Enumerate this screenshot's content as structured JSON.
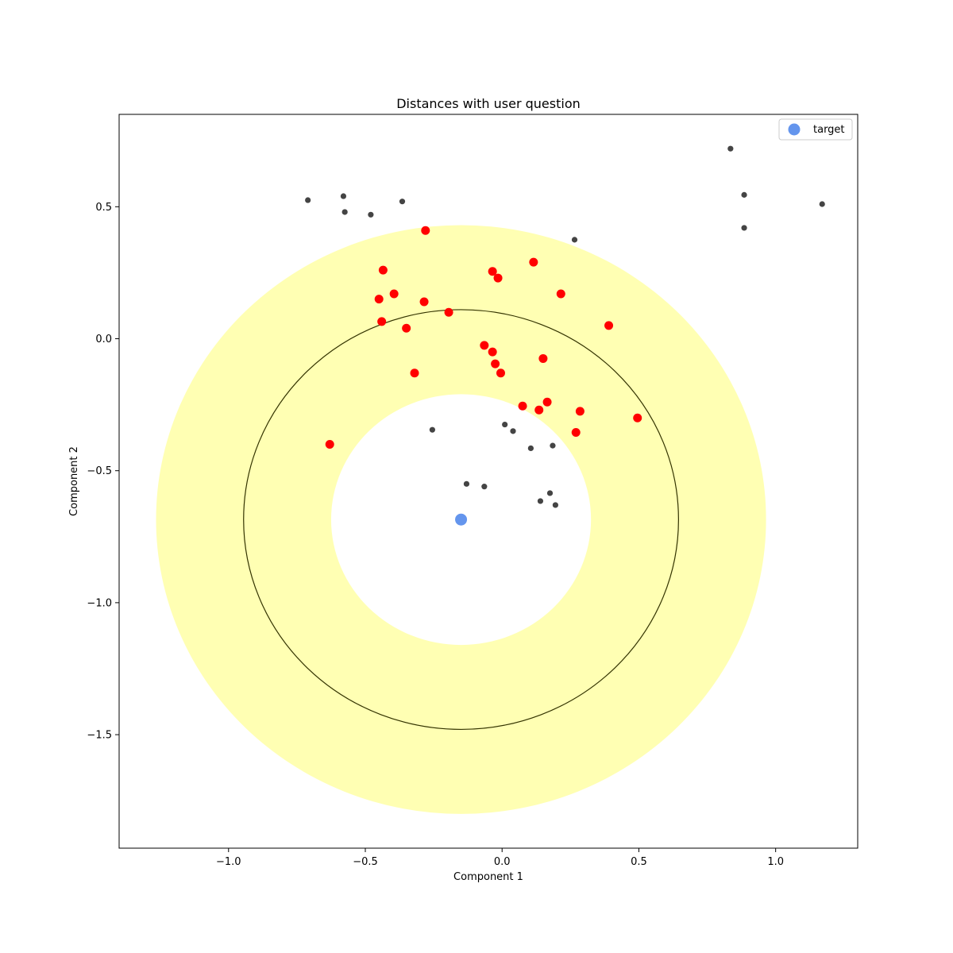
{
  "chart_data": {
    "type": "scatter",
    "title": "Distances with user question",
    "xlabel": "Component 1",
    "ylabel": "Component 2",
    "xlim": [
      -1.4,
      1.3
    ],
    "ylim": [
      -1.93,
      0.85
    ],
    "xticks": [
      -1.0,
      -0.5,
      0.0,
      0.5,
      1.0
    ],
    "yticks": [
      0.5,
      0.0,
      -0.5,
      -1.0,
      -1.5
    ],
    "xtick_labels": [
      "−1.0",
      "−0.5",
      "0.0",
      "0.5",
      "1.0"
    ],
    "ytick_labels": [
      "0.5",
      "0.0",
      "−0.5",
      "−1.0",
      "−1.5"
    ],
    "grid": false,
    "legend": {
      "placement": "top-right",
      "entries": [
        "target"
      ]
    },
    "colors": {
      "target": "#6495ed",
      "in_band": "#ff0000",
      "other": "#444444",
      "band_fill": "#ffffb3",
      "band_edge": "#333300"
    },
    "target": {
      "name": "target",
      "x": -0.15,
      "y": -0.685
    },
    "band": {
      "center": [
        -0.15,
        -0.685
      ],
      "inner_radius": 0.475,
      "mid_radius": 0.795,
      "outer_radius": 1.115
    },
    "in_band_points": [
      [
        -0.28,
        0.41
      ],
      [
        -0.435,
        0.26
      ],
      [
        -0.45,
        0.15
      ],
      [
        -0.395,
        0.17
      ],
      [
        -0.44,
        0.065
      ],
      [
        -0.35,
        0.04
      ],
      [
        -0.285,
        0.14
      ],
      [
        -0.195,
        0.1
      ],
      [
        -0.32,
        -0.13
      ],
      [
        -0.63,
        -0.4
      ],
      [
        -0.035,
        0.255
      ],
      [
        -0.015,
        0.23
      ],
      [
        0.115,
        0.29
      ],
      [
        0.215,
        0.17
      ],
      [
        0.39,
        0.05
      ],
      [
        -0.065,
        -0.025
      ],
      [
        -0.035,
        -0.05
      ],
      [
        -0.025,
        -0.095
      ],
      [
        -0.005,
        -0.13
      ],
      [
        0.15,
        -0.075
      ],
      [
        0.075,
        -0.255
      ],
      [
        0.135,
        -0.27
      ],
      [
        0.165,
        -0.24
      ],
      [
        0.285,
        -0.275
      ],
      [
        0.27,
        -0.355
      ],
      [
        0.495,
        -0.3
      ]
    ],
    "other_points": [
      [
        -0.71,
        0.525
      ],
      [
        -0.58,
        0.54
      ],
      [
        -0.575,
        0.48
      ],
      [
        -0.48,
        0.47
      ],
      [
        -0.365,
        0.52
      ],
      [
        0.265,
        0.375
      ],
      [
        0.835,
        0.72
      ],
      [
        0.885,
        0.545
      ],
      [
        0.885,
        0.42
      ],
      [
        1.17,
        0.51
      ],
      [
        -0.255,
        -0.345
      ],
      [
        0.01,
        -0.325
      ],
      [
        0.04,
        -0.35
      ],
      [
        0.105,
        -0.415
      ],
      [
        0.185,
        -0.405
      ],
      [
        -0.13,
        -0.55
      ],
      [
        -0.065,
        -0.56
      ],
      [
        0.175,
        -0.585
      ],
      [
        0.14,
        -0.615
      ],
      [
        0.195,
        -0.63
      ]
    ]
  }
}
